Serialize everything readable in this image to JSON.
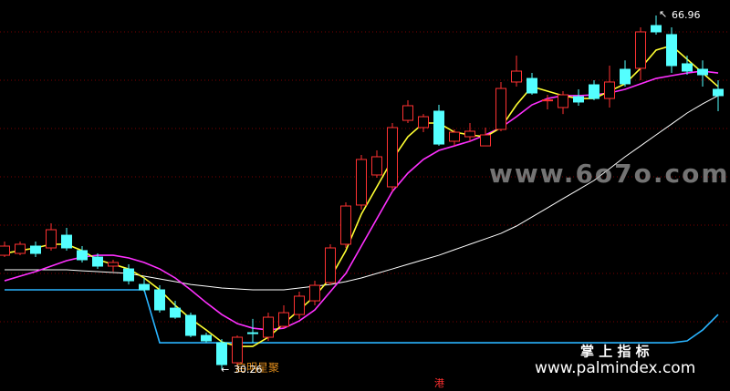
{
  "chart_data": {
    "type": "candlestick",
    "ylim": [
      27.99,
      68.57
    ],
    "up_color": "#ff3232",
    "down_color": "#54ffff",
    "open": [
      42.08,
      42.27,
      43.03,
      42.84,
      44.16,
      42.56,
      41.89,
      40.95,
      40.66,
      39.05,
      38.49,
      36.59,
      35.84,
      33.76,
      33.0,
      30.92,
      34.04,
      33.57,
      34.7,
      35.93,
      37.35,
      39.24,
      43.22,
      47.29,
      50.41,
      49.18,
      56.08,
      55.33,
      57.03,
      53.91,
      54.38,
      53.43,
      55.14,
      60.06,
      60.43,
      58.16,
      57.41,
      58.54,
      59.77,
      58.35,
      61.38,
      61.48,
      65.92,
      64.98,
      61.95,
      61.38,
      59.3
    ],
    "high": [
      43.5,
      43.5,
      43.5,
      45.4,
      44.92,
      43.03,
      42.27,
      41.61,
      41.14,
      39.72,
      38.96,
      37.35,
      36.12,
      34.04,
      33.38,
      33.76,
      35.47,
      36.12,
      36.88,
      38.3,
      39.43,
      43.22,
      47.57,
      52.49,
      52.96,
      55.8,
      58.16,
      56.74,
      57.69,
      55.14,
      55.8,
      55.33,
      60.06,
      62.8,
      61.0,
      58.73,
      59.11,
      59.3,
      60.25,
      61.76,
      62.3,
      65.73,
      66.96,
      65.73,
      62.8,
      62.3,
      60.25
    ],
    "low": [
      41.89,
      42.08,
      41.89,
      42.56,
      42.56,
      41.33,
      40.66,
      40.38,
      39.05,
      38.3,
      36.12,
      35.47,
      33.57,
      33.0,
      30.26,
      30.5,
      33.0,
      33.19,
      34.51,
      35.47,
      36.88,
      38.96,
      42.84,
      46.81,
      50.12,
      48.71,
      55.8,
      54.85,
      53.43,
      53.43,
      53.91,
      53.43,
      54.95,
      59.58,
      58.73,
      57.22,
      56.74,
      57.6,
      58.16,
      57.41,
      59.58,
      60.25,
      64.98,
      61.0,
      60.81,
      59.58,
      57.03
    ],
    "close": [
      43.03,
      43.22,
      42.27,
      44.73,
      42.84,
      41.61,
      40.95,
      41.33,
      39.43,
      38.49,
      36.41,
      35.65,
      33.76,
      33.19,
      30.73,
      33.57,
      34.0,
      35.65,
      36.12,
      37.83,
      38.96,
      42.84,
      47.19,
      52.02,
      52.3,
      55.33,
      57.6,
      56.46,
      53.62,
      54.85,
      54.95,
      54.57,
      59.39,
      61.19,
      58.92,
      58.2,
      58.73,
      57.98,
      58.35,
      60.06,
      59.87,
      65.26,
      65.26,
      61.76,
      61.19,
      60.81,
      58.64
    ],
    "lines": [
      {
        "color": "#ffffff",
        "values": [
          40.57,
          40.57,
          40.57,
          40.57,
          40.57,
          40.47,
          40.38,
          40.29,
          40.19,
          39.91,
          39.62,
          39.34,
          39.05,
          38.87,
          38.68,
          38.58,
          38.49,
          38.49,
          38.49,
          38.68,
          38.87,
          39.05,
          39.34,
          39.72,
          40.19,
          40.66,
          41.14,
          41.61,
          42.08,
          42.65,
          43.22,
          43.78,
          44.35,
          45.11,
          46.05,
          47.0,
          47.95,
          48.89,
          49.84,
          51.07,
          52.3,
          53.43,
          54.57,
          55.7,
          56.84,
          57.79,
          58.64
        ]
      },
      {
        "color": "#2ab4ff",
        "values": [
          38.49,
          38.49,
          38.49,
          38.49,
          38.49,
          38.49,
          38.49,
          38.49,
          38.49,
          38.49,
          33.0,
          33.0,
          33.0,
          33.0,
          33.0,
          33.0,
          33.0,
          33.0,
          33.0,
          33.0,
          33.0,
          33.0,
          33.0,
          33.0,
          33.0,
          33.0,
          33.0,
          33.0,
          33.0,
          33.0,
          33.0,
          33.0,
          33.0,
          33.0,
          33.0,
          33.0,
          33.0,
          33.0,
          33.0,
          33.0,
          33.0,
          33.0,
          33.0,
          33.0,
          33.19,
          34.32,
          35.93
        ]
      },
      {
        "color": "#ff30ff",
        "values": [
          39.43,
          39.91,
          40.38,
          40.95,
          41.52,
          41.89,
          42.08,
          42.08,
          41.8,
          41.33,
          40.66,
          39.72,
          38.49,
          37.16,
          35.93,
          34.99,
          34.51,
          34.33,
          34.51,
          35.27,
          36.41,
          38.3,
          40.19,
          43.03,
          45.87,
          48.7,
          50.6,
          52.02,
          52.96,
          53.43,
          53.91,
          54.57,
          55.33,
          56.46,
          57.69,
          58.35,
          58.64,
          58.64,
          58.73,
          58.92,
          59.3,
          59.87,
          60.43,
          60.72,
          61.0,
          61.19,
          61.0
        ]
      },
      {
        "color": "#ffff32",
        "values": [
          42.27,
          42.56,
          42.84,
          43.22,
          43.22,
          42.56,
          41.61,
          41.14,
          40.66,
          39.72,
          38.49,
          36.88,
          35.47,
          34.33,
          33.09,
          32.62,
          32.62,
          33.57,
          34.99,
          36.41,
          37.83,
          39.72,
          42.56,
          46.34,
          49.18,
          52.02,
          54.38,
          55.8,
          55.8,
          54.85,
          54.57,
          54.38,
          55.33,
          57.69,
          59.58,
          59.11,
          58.64,
          58.35,
          58.35,
          59.11,
          59.87,
          61.48,
          63.37,
          63.84,
          62.42,
          61.0,
          59.58
        ]
      }
    ],
    "annotation": "启明星聚",
    "watermark_site": "www.6o7o.com",
    "watermark_brand": "掌 上 指 标",
    "watermark_url": "www.palmindex.com",
    "market_tag": "港"
  }
}
